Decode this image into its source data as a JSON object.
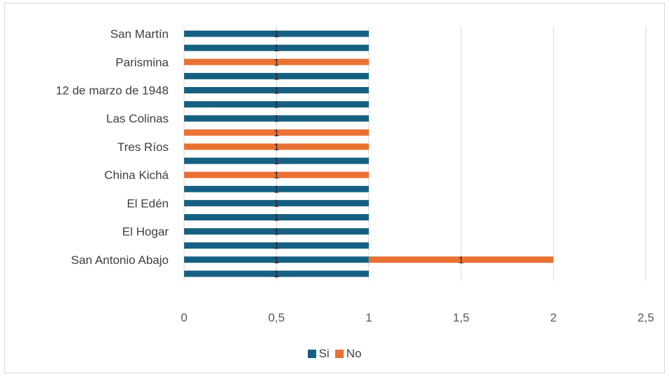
{
  "chart_data": {
    "type": "bar",
    "orientation": "horizontal",
    "stacked": true,
    "rows": [
      {
        "label": "",
        "values": [
          1,
          0
        ]
      },
      {
        "label": "San Antonio Abajo",
        "values": [
          1,
          1
        ]
      },
      {
        "label": "",
        "values": [
          1,
          0
        ]
      },
      {
        "label": "El Hogar",
        "values": [
          1,
          0
        ]
      },
      {
        "label": "",
        "values": [
          1,
          0
        ]
      },
      {
        "label": "El Edén",
        "values": [
          1,
          0
        ]
      },
      {
        "label": "",
        "values": [
          1,
          0
        ]
      },
      {
        "label": "China Kichá",
        "values": [
          0,
          1
        ]
      },
      {
        "label": "",
        "values": [
          1,
          0
        ]
      },
      {
        "label": "Tres Ríos",
        "values": [
          0,
          1
        ]
      },
      {
        "label": "",
        "values": [
          0,
          1
        ]
      },
      {
        "label": "Las Colinas",
        "values": [
          1,
          0
        ]
      },
      {
        "label": "",
        "values": [
          1,
          0
        ]
      },
      {
        "label": "12 de marzo de 1948",
        "values": [
          1,
          0
        ]
      },
      {
        "label": "",
        "values": [
          1,
          0
        ]
      },
      {
        "label": "Parismina",
        "values": [
          0,
          1
        ]
      },
      {
        "label": "",
        "values": [
          1,
          0
        ]
      },
      {
        "label": "San Martín",
        "values": [
          1,
          0
        ]
      }
    ],
    "series": [
      {
        "name": "Si",
        "color": "#156082"
      },
      {
        "name": "No",
        "color": "#E97132"
      }
    ],
    "x_ticks": [
      "0",
      "0,5",
      "1",
      "1,5",
      "2",
      "2,5"
    ],
    "xlim": [
      0,
      2.5
    ],
    "data_label": "1",
    "grid": "vertical",
    "legend_position": "bottom",
    "title": "",
    "xlabel": "",
    "ylabel": ""
  }
}
